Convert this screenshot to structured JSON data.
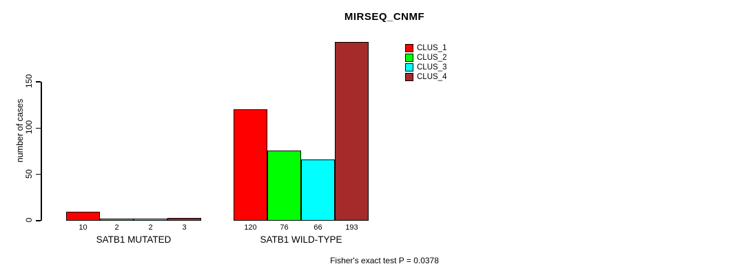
{
  "chart_data": {
    "type": "bar",
    "title": "MIRSEQ_CNMF",
    "ylabel": "number of cases",
    "xlabel": "",
    "yticks": [
      0,
      50,
      100,
      150
    ],
    "ylim": [
      0,
      195
    ],
    "grid": false,
    "legend_position": "top-right-inside",
    "categories": [
      "SATB1 MUTATED",
      "SATB1 WILD-TYPE"
    ],
    "series": [
      {
        "name": "CLUS_1",
        "color": "#ff0000",
        "values": [
          10,
          120
        ]
      },
      {
        "name": "CLUS_2",
        "color": "#00ff00",
        "values": [
          2,
          76
        ]
      },
      {
        "name": "CLUS_3",
        "color": "#00ffff",
        "values": [
          2,
          66
        ]
      },
      {
        "name": "CLUS_4",
        "color": "#a52a2a",
        "values": [
          3,
          193
        ]
      }
    ],
    "bar_value_labels": {
      "SATB1 MUTATED": [
        10,
        2,
        2,
        3
      ],
      "SATB1 WILD-TYPE": [
        120,
        76,
        66,
        193
      ]
    },
    "annotation": "Fisher's exact test P = 0.0378"
  }
}
